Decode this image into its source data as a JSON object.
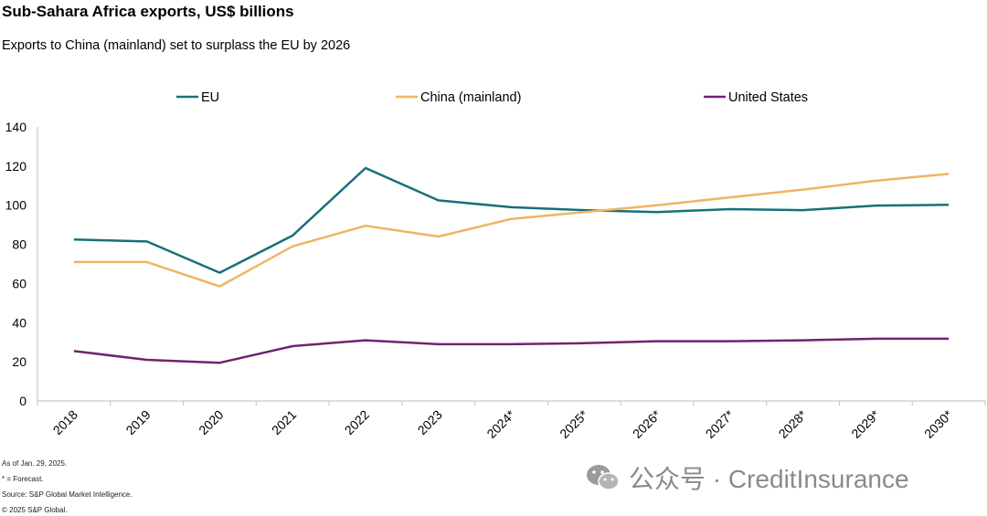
{
  "title": "Sub-Sahara Africa exports, US$ billions",
  "subtitle": "Exports to China (mainland) set to surplass the EU by 2026",
  "chart_data": {
    "type": "line",
    "title": "Sub-Sahara Africa exports, US$ billions",
    "subtitle": "Exports to China (mainland) set to surplass the EU by 2026",
    "categories": [
      "2018",
      "2019",
      "2020",
      "2021",
      "2022",
      "2023",
      "2024*",
      "2025*",
      "2026*",
      "2027*",
      "2028*",
      "2029*",
      "2030*"
    ],
    "ylim": [
      0,
      140
    ],
    "yticks": [
      0,
      20,
      40,
      60,
      80,
      100,
      120,
      140
    ],
    "grid": false,
    "legend_position": "top",
    "series": [
      {
        "name": "EU",
        "color": "#17707a",
        "values": [
          82.5,
          81.5,
          65.5,
          84.5,
          119,
          102.5,
          99,
          97.5,
          96.5,
          98,
          97.5,
          99.8,
          100.2
        ]
      },
      {
        "name": "China (mainland)",
        "color": "#efb562",
        "values": [
          71,
          71,
          58.5,
          79,
          89.5,
          84,
          93,
          96.5,
          100,
          104,
          108,
          112.5,
          116
        ]
      },
      {
        "name": "United States",
        "color": "#6e2470",
        "values": [
          25.5,
          21,
          19.5,
          28,
          31,
          29,
          29,
          29.5,
          30.5,
          30.5,
          31,
          31.8,
          31.8
        ]
      }
    ]
  },
  "footnotes": [
    "As of Jan. 29, 2025.",
    "* = Forecast.",
    "Source: S&P Global Market Intelligence.",
    "© 2025 S&P Global."
  ],
  "watermark": {
    "text": "公众号 · CreditInsurance",
    "icon": "wechat-icon"
  }
}
